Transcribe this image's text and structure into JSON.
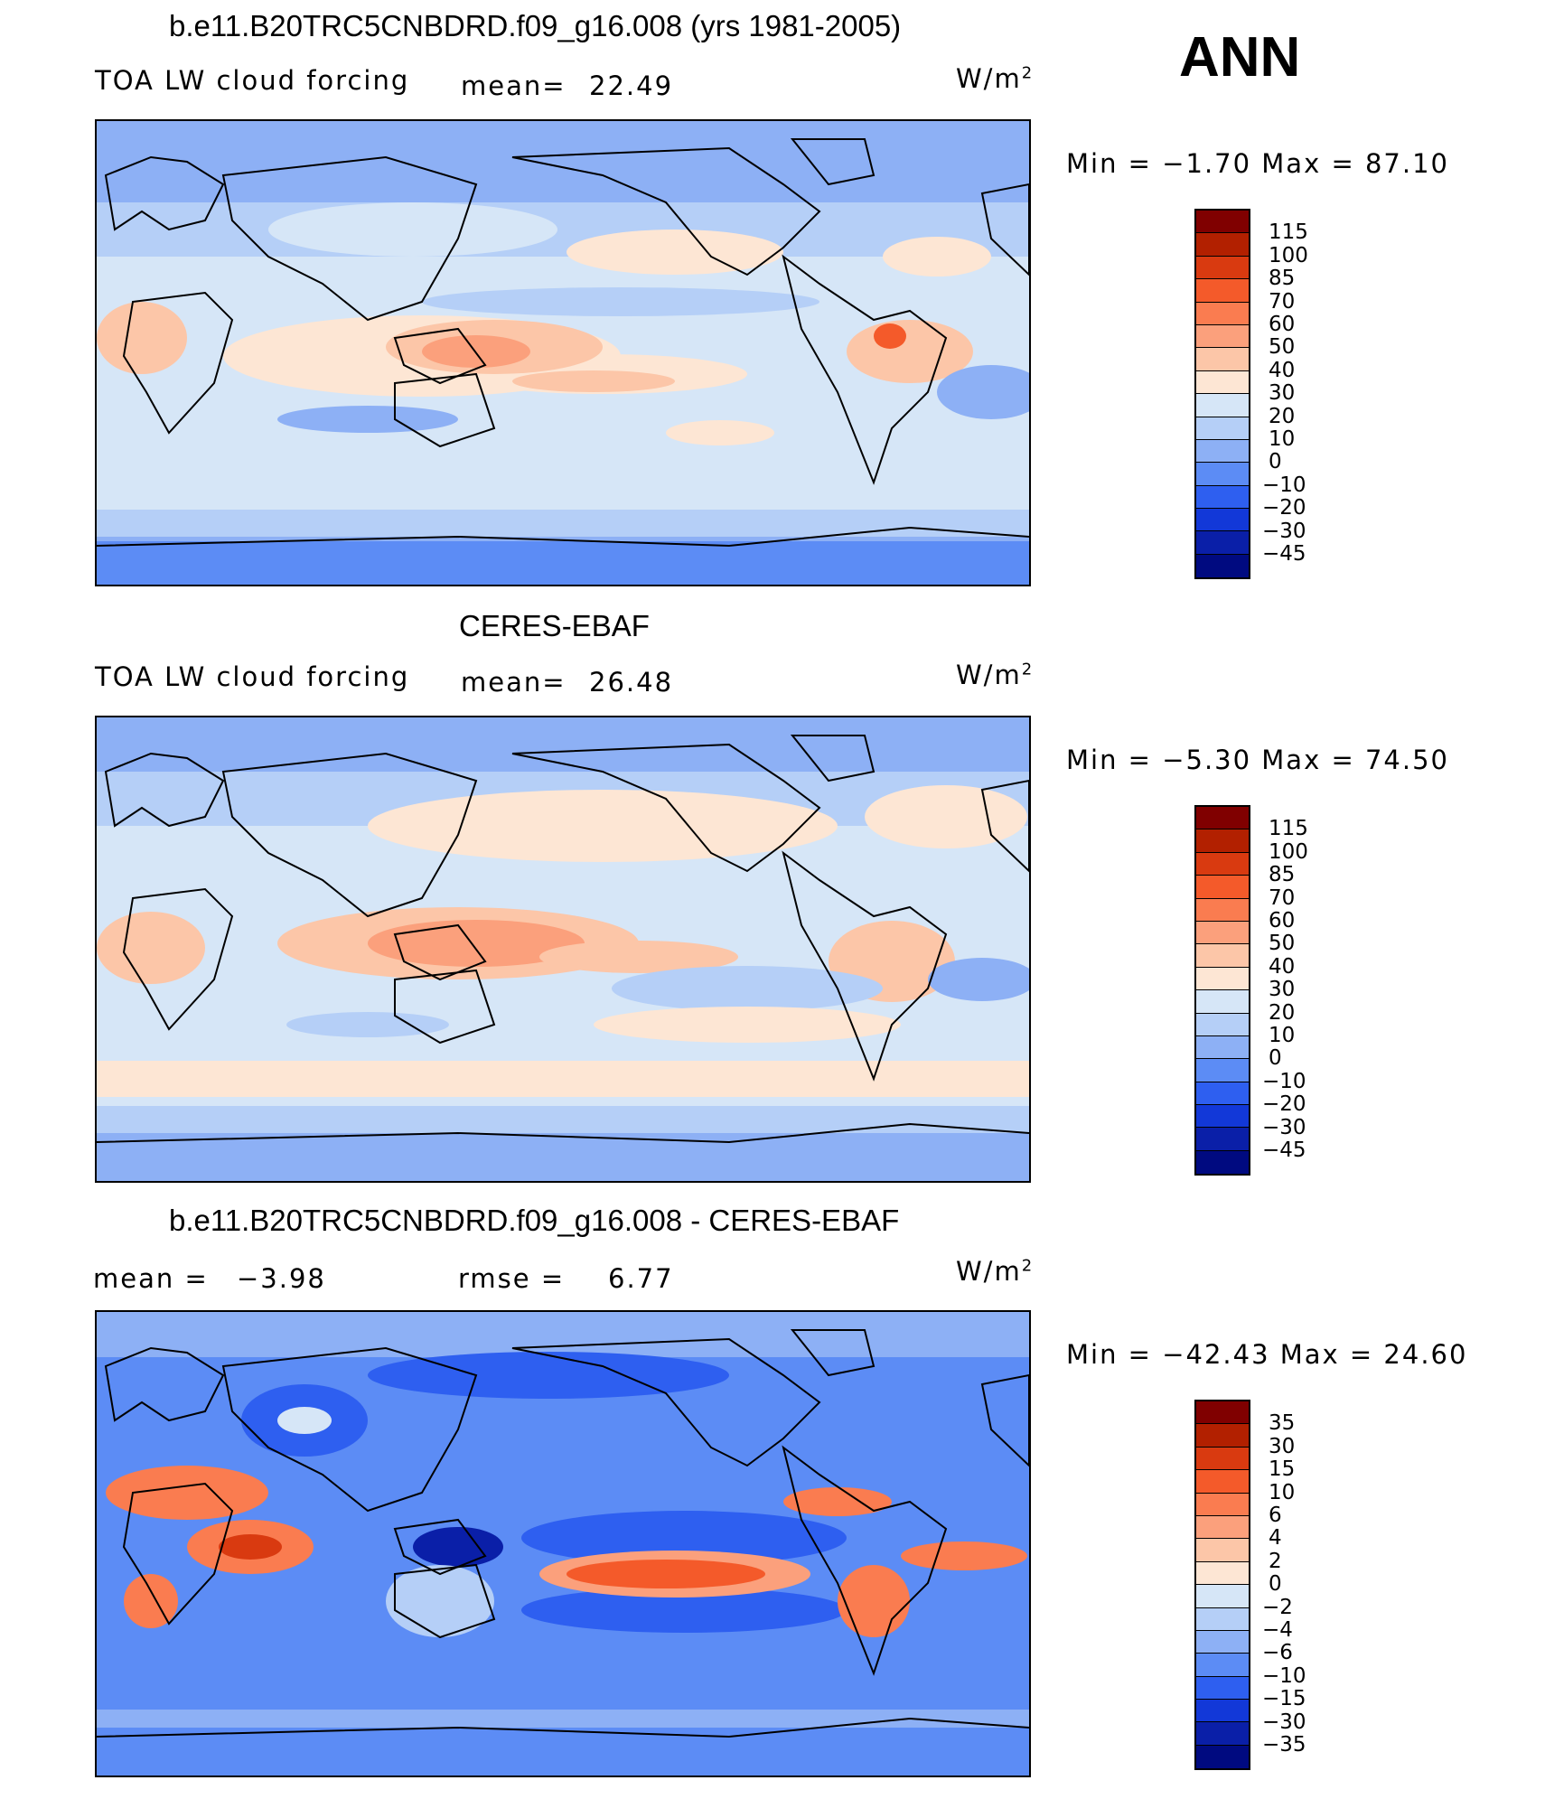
{
  "season": "ANN",
  "units_main": "W/m",
  "units_sup": "2",
  "panels": [
    {
      "title": "b.e11.B20TRC5CNBDRD.f09_g16.008 (yrs 1981-2005)",
      "variable": "TOA LW cloud forcing",
      "mean_label": "mean=",
      "mean_value": "22.49",
      "min_max": "Min =   −1.70 Max =   87.10"
    },
    {
      "title": "CERES-EBAF",
      "variable": "TOA LW cloud forcing",
      "mean_label": "mean=",
      "mean_value": "26.48",
      "min_max": "Min =   −5.30 Max =   74.50"
    },
    {
      "title": "b.e11.B20TRC5CNBDRD.f09_g16.008 - CERES-EBAF",
      "mean_label": "mean =",
      "mean_value": "−3.98",
      "rmse_label": "rmse =",
      "rmse_value": "6.77",
      "min_max": "Min = −42.43 Max =   24.60"
    }
  ],
  "colorbar_levels": [
    "115",
    "100",
    "85",
    "70",
    "60",
    "50",
    "40",
    "30",
    "20",
    "10",
    "0",
    "−10",
    "−20",
    "−30",
    "−45"
  ],
  "diff_colorbar_levels": [
    "35",
    "30",
    "15",
    "10",
    "6",
    "4",
    "2",
    "0",
    "−2",
    "−4",
    "−6",
    "−10",
    "−15",
    "−30",
    "−35"
  ],
  "colors": {
    "scale": [
      "#800000",
      "#b22000",
      "#d93a10",
      "#f45a2a",
      "#fa7c50",
      "#fba07c",
      "#fcc6a8",
      "#fde6d4",
      "#d6e6f7",
      "#b5cff7",
      "#8db0f5",
      "#5c8cf5",
      "#2e5ff0",
      "#1238d8",
      "#0a1fa8",
      "#000a80"
    ]
  }
}
